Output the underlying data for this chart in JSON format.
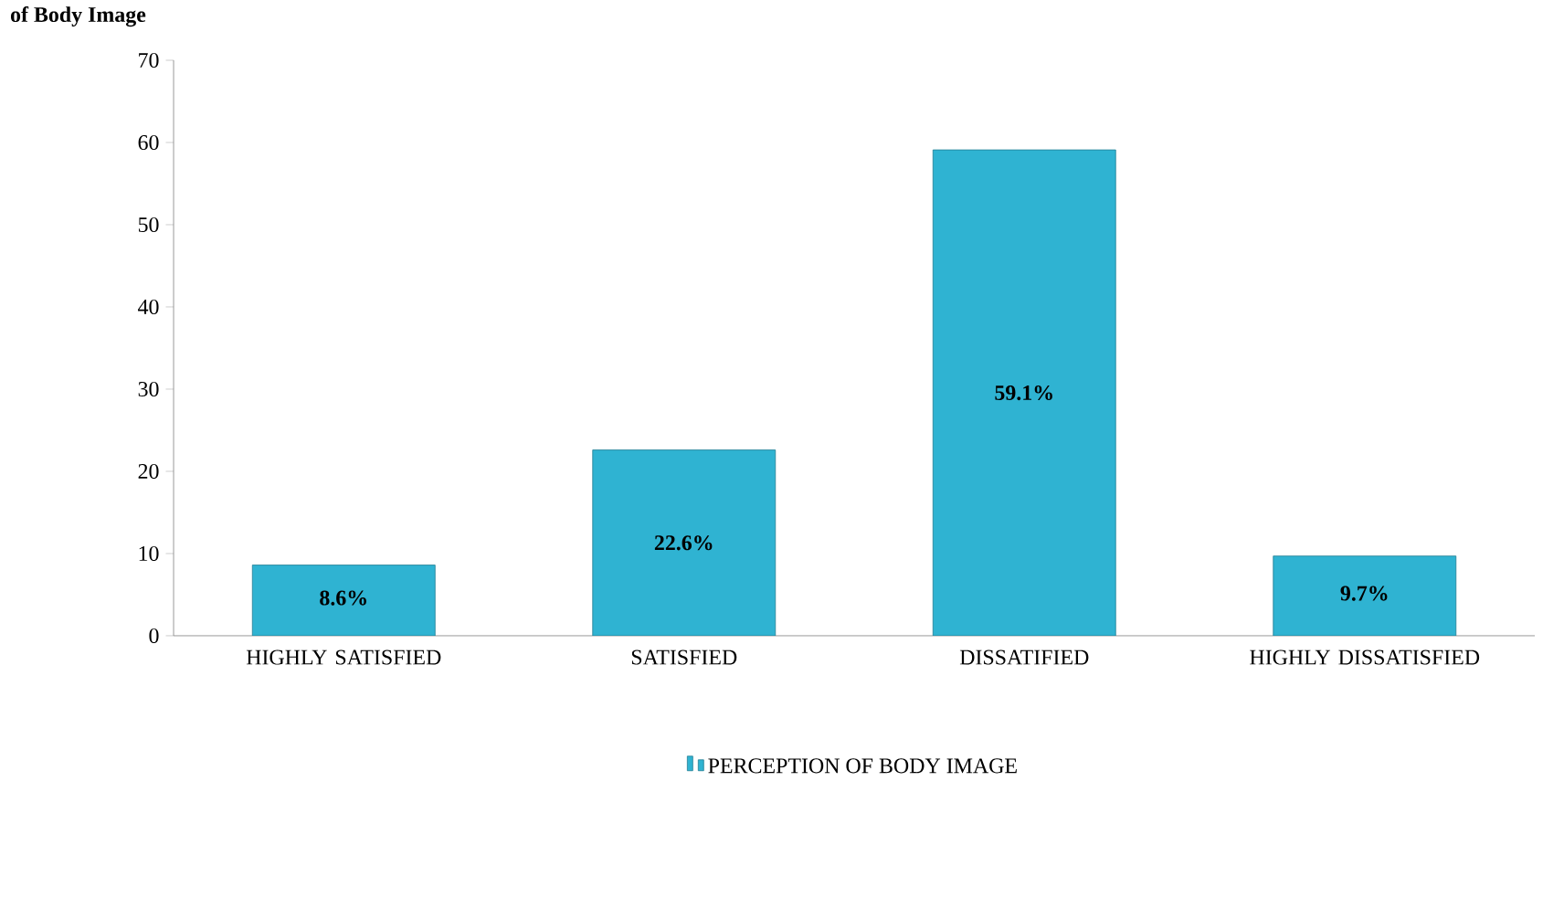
{
  "chart_data": {
    "type": "bar",
    "title": "of Body Image",
    "categories": [
      "HIGHLY SATISFIED",
      "SATISFIED",
      "DISSATIFIED",
      "HIGHLY DISSATISFIED"
    ],
    "series": [
      {
        "name": "PERCEPTION OF BODY IMAGE",
        "color": "#2fb3d2",
        "values": [
          8.6,
          22.6,
          59.1,
          9.7
        ],
        "value_labels": [
          "8.6%",
          "22.6%",
          "59.1%",
          "9.7%"
        ]
      }
    ],
    "ylim": [
      0,
      70
    ],
    "yticks": [
      0,
      10,
      20,
      30,
      40,
      50,
      60,
      70
    ],
    "legend": "bottom"
  }
}
